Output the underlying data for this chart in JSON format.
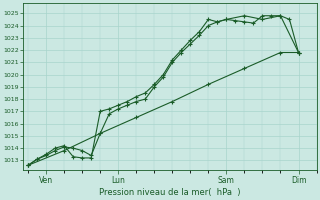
{
  "bg_color": "#cbe8e2",
  "grid_color": "#a8d4cc",
  "line_color": "#1a5c28",
  "marker_color": "#1a5c28",
  "xlabel": "Pression niveau de la mer(  hPa  )",
  "xlabel_color": "#1a5c28",
  "tick_color": "#1a5c28",
  "spine_color": "#1a5c28",
  "ylim": [
    1012.2,
    1025.8
  ],
  "yticks": [
    1013,
    1014,
    1015,
    1016,
    1017,
    1018,
    1019,
    1020,
    1021,
    1022,
    1023,
    1024,
    1025
  ],
  "xlim": [
    -0.3,
    16.0
  ],
  "series1_x": [
    0,
    0.5,
    1.0,
    1.5,
    2.0,
    2.5,
    3.0,
    3.5,
    4.0,
    4.5,
    5.0,
    5.5,
    6.0,
    6.5,
    7.0,
    7.5,
    8.0,
    8.5,
    9.0,
    9.5,
    10.0,
    10.5,
    11.0,
    11.5,
    12.0,
    12.5,
    13.0,
    13.5,
    14.0,
    14.5,
    15.0
  ],
  "series1_y": [
    1012.6,
    1013.1,
    1013.4,
    1013.8,
    1014.1,
    1014.0,
    1013.8,
    1013.4,
    1015.2,
    1016.8,
    1017.2,
    1017.5,
    1017.8,
    1018.0,
    1019.0,
    1019.8,
    1021.0,
    1021.8,
    1022.5,
    1023.2,
    1024.0,
    1024.3,
    1024.5,
    1024.4,
    1024.3,
    1024.2,
    1024.8,
    1024.8,
    1024.8,
    1024.5,
    1021.8
  ],
  "series2_x": [
    0,
    0.5,
    1.0,
    1.5,
    2.0,
    2.5,
    3.0,
    3.5,
    4.0,
    4.5,
    5.0,
    5.5,
    6.0,
    6.5,
    7.0,
    7.5,
    8.0,
    8.5,
    9.0,
    9.5,
    10.0,
    10.5,
    11.0,
    12.0,
    13.0,
    14.0,
    15.0
  ],
  "series2_y": [
    1012.6,
    1013.1,
    1013.5,
    1014.0,
    1014.2,
    1013.3,
    1013.2,
    1013.2,
    1017.0,
    1017.2,
    1017.5,
    1017.8,
    1018.2,
    1018.5,
    1019.2,
    1020.0,
    1021.2,
    1022.0,
    1022.8,
    1023.5,
    1024.5,
    1024.3,
    1024.5,
    1024.8,
    1024.5,
    1024.8,
    1021.8
  ],
  "series3_x": [
    0,
    2.0,
    4.0,
    6.0,
    8.0,
    10.0,
    12.0,
    14.0,
    15.0
  ],
  "series3_y": [
    1012.6,
    1013.8,
    1015.2,
    1016.5,
    1017.8,
    1019.2,
    1020.5,
    1021.8,
    1021.8
  ]
}
